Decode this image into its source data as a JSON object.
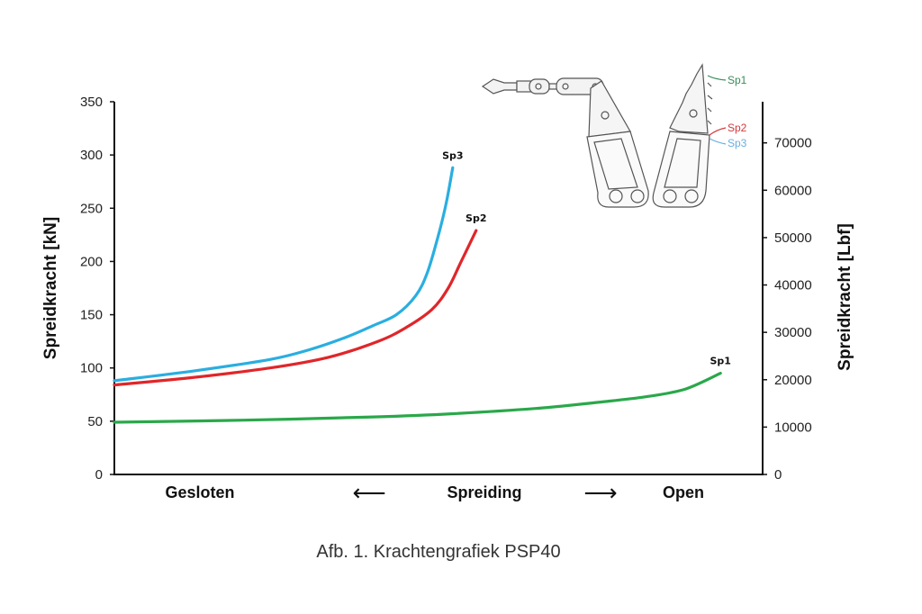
{
  "chart_data": {
    "type": "line",
    "title": "",
    "caption": "Afb. 1. Krachtengrafiek PSP40",
    "xlabel": "Spreiding",
    "x_categories": {
      "left": "Gesloten",
      "center": "Spreiding",
      "right": "Open",
      "left_arrow": "⟵",
      "right_arrow": "⟶"
    },
    "x_unit": "spread (% of full opening, estimated)",
    "xlim": [
      0,
      100
    ],
    "ylabel": "Spreidkracht [kN]",
    "ylim": [
      0,
      350
    ],
    "yticks": [
      0,
      50,
      100,
      150,
      200,
      250,
      300,
      350
    ],
    "y2label": "Spreidkracht [Lbf]",
    "y2lim": [
      0,
      78683
    ],
    "y2ticks": [
      0,
      10000,
      20000,
      30000,
      40000,
      50000,
      60000,
      70000
    ],
    "grid": false,
    "series": [
      {
        "name": "Sp1",
        "color": "#2aa84a",
        "x": [
          0,
          20,
          40,
          52,
          65,
          75,
          82,
          88,
          93.5
        ],
        "values": [
          49,
          51,
          54,
          57,
          62,
          68,
          73,
          80,
          95
        ]
      },
      {
        "name": "Sp2",
        "color": "#e0262a",
        "x": [
          0,
          12,
          24,
          33,
          40.7,
          45,
          49,
          51.5,
          53.5,
          55.8
        ],
        "values": [
          84,
          91,
          100,
          110,
          125,
          138,
          155,
          175,
          200,
          229
        ]
      },
      {
        "name": "Sp3",
        "color": "#2aaee0",
        "x": [
          0,
          12,
          24,
          30,
          35.8,
          40,
          43.5,
          46.5,
          48.3,
          50,
          51.2,
          52.2
        ],
        "values": [
          88,
          97,
          108,
          117,
          129,
          140,
          150,
          168,
          190,
          225,
          255,
          288
        ]
      }
    ]
  },
  "inset": {
    "description": "spreader arm diagram",
    "labels": [
      {
        "name": "Sp1",
        "color": "#3a8a5a"
      },
      {
        "name": "Sp2",
        "color": "#d23a3a"
      },
      {
        "name": "Sp3",
        "color": "#6aaee0"
      }
    ]
  }
}
